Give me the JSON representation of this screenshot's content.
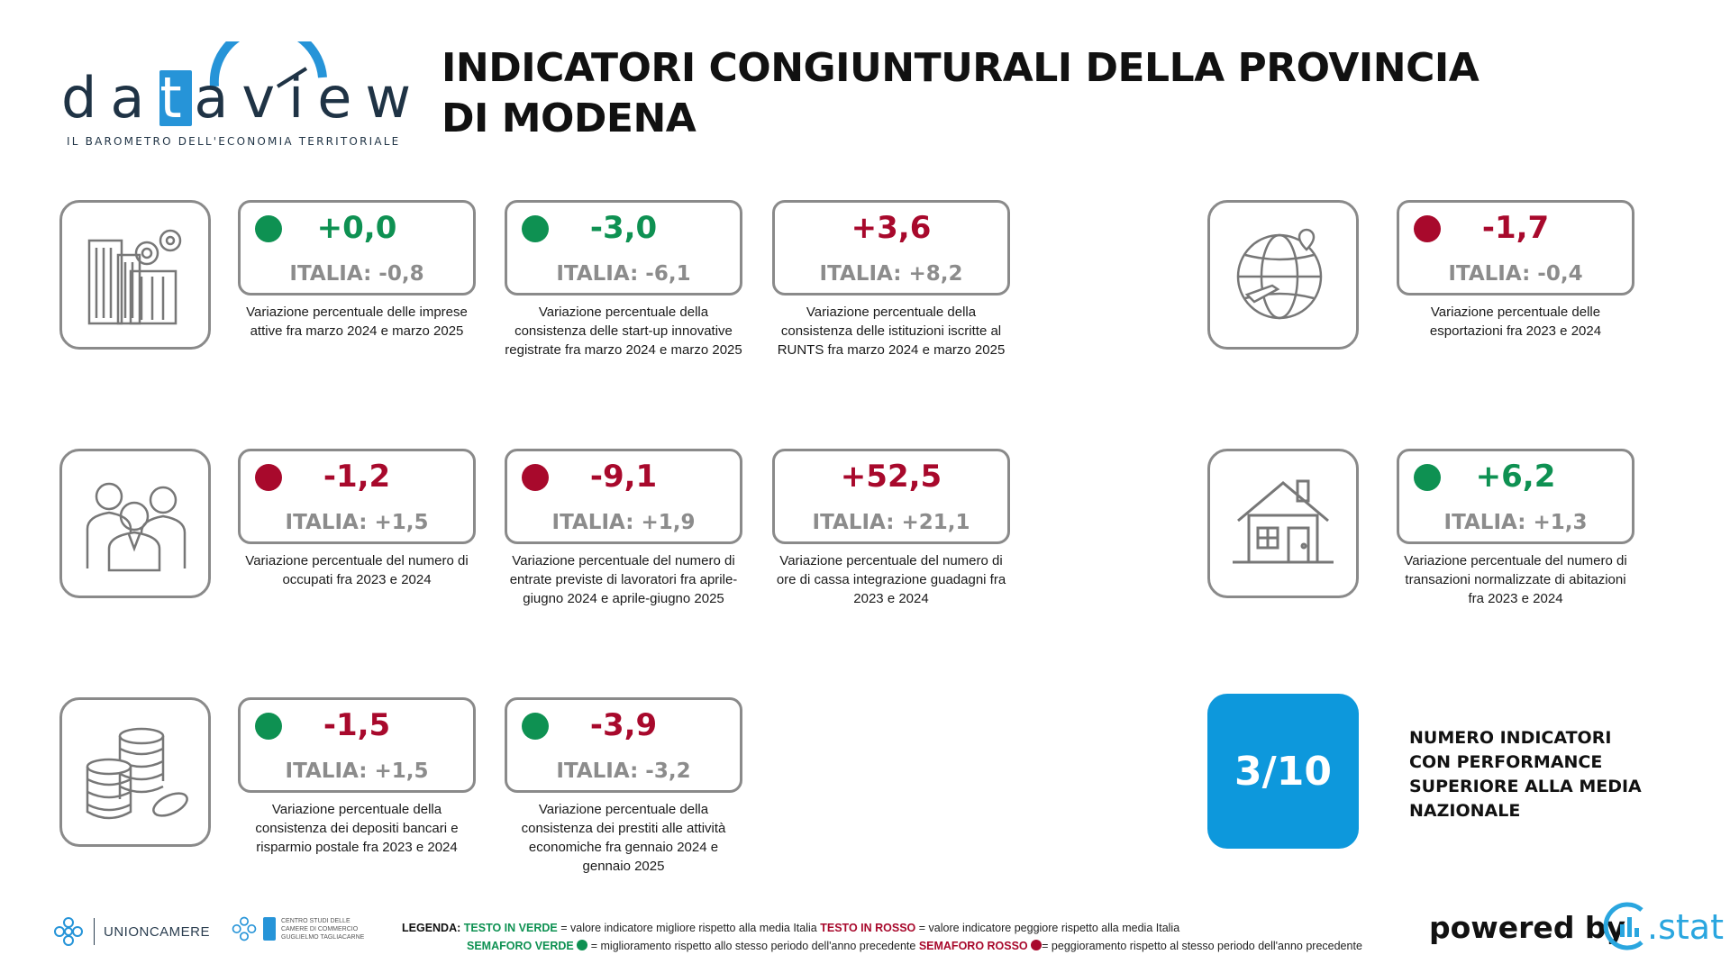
{
  "header": {
    "logo_word_left": "da",
    "logo_word_t": "t",
    "logo_word_right": "aview",
    "logo_subtitle": "IL BAROMETRO DELL'ECONOMIA TERRITORIALE",
    "title": "INDICATORI CONGIUNTURALI DELLA PROVINCIA DI MODENA"
  },
  "indicators": [
    {
      "value": "+0,0",
      "italia": "ITALIA: -0,8",
      "semaforo": "green",
      "text_color": "green",
      "desc": "Variazione percentuale delle imprese attive fra marzo 2024 e marzo 2025"
    },
    {
      "value": "-3,0",
      "italia": "ITALIA: -6,1",
      "semaforo": "green",
      "text_color": "green",
      "desc": "Variazione percentuale della consistenza delle start-up innovative registrate fra marzo 2024 e marzo 2025"
    },
    {
      "value": "+3,6",
      "italia": "ITALIA: +8,2",
      "semaforo": "none",
      "text_color": "red",
      "desc": "Variazione percentuale della consistenza delle istituzioni iscritte al RUNTS fra marzo 2024 e marzo 2025"
    },
    {
      "value": "-1,7",
      "italia": "ITALIA: -0,4",
      "semaforo": "red",
      "text_color": "red",
      "desc": "Variazione percentuale delle esportazioni fra 2023 e 2024"
    },
    {
      "value": "-1,2",
      "italia": "ITALIA: +1,5",
      "semaforo": "red",
      "text_color": "red",
      "desc": "Variazione percentuale del numero di occupati fra 2023 e 2024"
    },
    {
      "value": "-9,1",
      "italia": "ITALIA: +1,9",
      "semaforo": "red",
      "text_color": "red",
      "desc": "Variazione percentuale del numero di entrate previste di lavoratori fra aprile-giugno 2024 e aprile-giugno 2025"
    },
    {
      "value": "+52,5",
      "italia": "ITALIA: +21,1",
      "semaforo": "none",
      "text_color": "red",
      "desc": "Variazione percentuale del numero di ore di cassa integrazione guadagni fra 2023 e 2024"
    },
    {
      "value": "+6,2",
      "italia": "ITALIA: +1,3",
      "semaforo": "green",
      "text_color": "green",
      "desc": "Variazione percentuale del numero di transazioni normalizzate di abitazioni fra 2023 e 2024"
    },
    {
      "value": "-1,5",
      "italia": "ITALIA: +1,5",
      "semaforo": "green",
      "text_color": "red",
      "desc": "Variazione percentuale della consistenza dei depositi bancari e risparmio postale fra 2023 e 2024"
    },
    {
      "value": "-3,9",
      "italia": "ITALIA: -3,2",
      "semaforo": "green",
      "text_color": "red",
      "desc": "Variazione percentuale della consistenza dei prestiti alle attività economiche fra gennaio 2024 e gennaio 2025"
    }
  ],
  "icons": [
    "buildings-gears-icon",
    "globe-plane-icon",
    "people-group-icon",
    "house-icon",
    "coins-stack-icon"
  ],
  "summary": {
    "score": "3/10",
    "label": "NUMERO INDICATORI CON PERFORMANCE SUPERIORE ALLA MEDIA NAZIONALE"
  },
  "footer": {
    "unioncamere": "UNIONCAMERE",
    "centro_studi_line1": "CENTRO STUDI DELLE",
    "centro_studi_line2": "CAMERE DI COMMERCIO",
    "centro_studi_line3": "GUGLIELMO TAGLIACARNE",
    "legend_label": "LEGENDA:",
    "legend_green_text": "TESTO IN VERDE",
    "legend_green_desc": "= valore indicatore migliore rispetto alla media Italia",
    "legend_red_text": "TESTO IN ROSSO",
    "legend_red_desc": "= valore indicatore peggiore rispetto alla media Italia",
    "legend_green_sem": "SEMAFORO VERDE",
    "legend_green_sem_desc": "= miglioramento rispetto allo stesso periodo dell'anno precedente",
    "legend_red_sem": "SEMAFORO ROSSO",
    "legend_red_sem_desc": "= peggioramento rispetto al stesso periodo dell'anno precedente",
    "powered_by": "powered by",
    "cstat": ".stat"
  },
  "colors": {
    "green": "#0e9152",
    "red": "#a8092c",
    "grey": "#8c8c8c",
    "blue": "#0d98dc"
  }
}
